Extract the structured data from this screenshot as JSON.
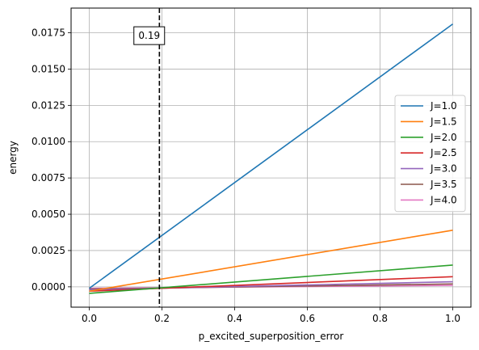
{
  "chart_data": {
    "type": "line",
    "title": "",
    "xlabel": "p_excited_superposition_error",
    "ylabel": "energy",
    "xlim": [
      -0.05,
      1.05
    ],
    "ylim": [
      -0.0014,
      0.0192
    ],
    "xticks": [
      0.0,
      0.2,
      0.4,
      0.6,
      0.8,
      1.0
    ],
    "xtick_labels": [
      "0.0",
      "0.2",
      "0.4",
      "0.6",
      "0.8",
      "1.0"
    ],
    "yticks": [
      0.0,
      0.0025,
      0.005,
      0.0075,
      0.01,
      0.0125,
      0.015,
      0.0175
    ],
    "ytick_labels": [
      "0.0000",
      "0.0025",
      "0.0050",
      "0.0075",
      "0.0100",
      "0.0125",
      "0.0150",
      "0.0175"
    ],
    "grid": true,
    "legend_position": "center-right",
    "x": [
      0.0,
      1.0
    ],
    "series": [
      {
        "name": "J=1.0",
        "color": "#1f77b4",
        "values": [
          -0.0001,
          0.0181
        ]
      },
      {
        "name": "J=1.5",
        "color": "#ff7f0e",
        "values": [
          -0.0003,
          0.0039
        ]
      },
      {
        "name": "J=2.0",
        "color": "#2ca02c",
        "values": [
          -0.00045,
          0.0015
        ]
      },
      {
        "name": "J=2.5",
        "color": "#d62728",
        "values": [
          -0.0003,
          0.0007
        ]
      },
      {
        "name": "J=3.0",
        "color": "#9467bd",
        "values": [
          -0.0002,
          0.00035
        ]
      },
      {
        "name": "J=3.5",
        "color": "#8c564b",
        "values": [
          -0.00015,
          0.0002
        ]
      },
      {
        "name": "J=4.0",
        "color": "#e377c2",
        "values": [
          -0.0001,
          0.0001
        ]
      }
    ],
    "vline": {
      "x": 0.193,
      "color": "#000000",
      "style": "dashed"
    },
    "annotation": {
      "text": "0.19",
      "x": 0.165,
      "y": 0.0173
    }
  }
}
